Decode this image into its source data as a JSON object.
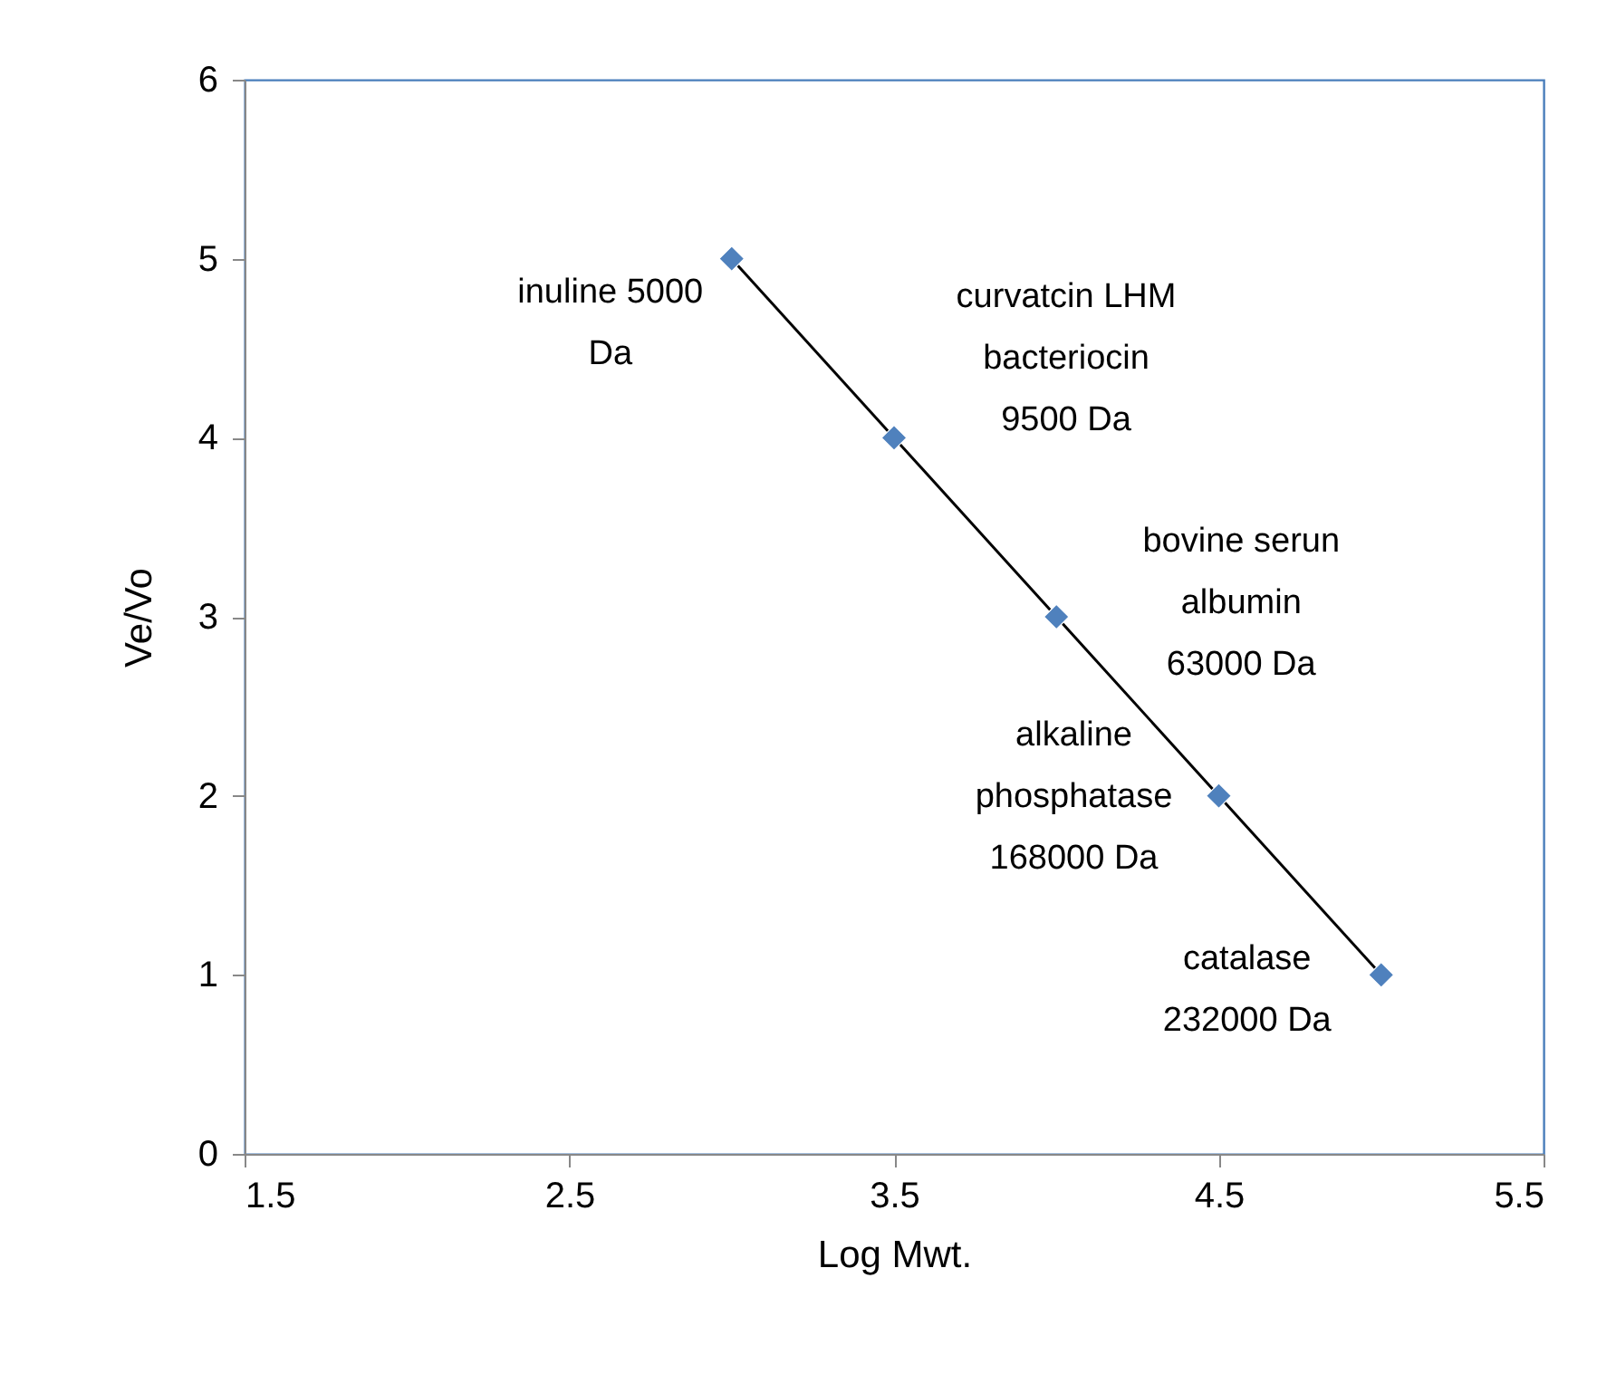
{
  "chart_data": {
    "type": "scatter",
    "xlabel": "Log Mwt.",
    "ylabel": "Ve/Vo",
    "xlim": [
      1.5,
      5.5
    ],
    "xticks": [
      1.5,
      2.5,
      3.5,
      4.5,
      5.5
    ],
    "ylim": [
      0,
      6
    ],
    "yticks": [
      0,
      1,
      2,
      3,
      4,
      5,
      6
    ],
    "grid": false,
    "series": [
      {
        "marker": "diamond",
        "color": "#4f81bd",
        "x": [
          3,
          3.5,
          4,
          4.5,
          5
        ],
        "values": [
          5,
          4,
          3,
          2,
          1
        ]
      },
      {
        "type": "line",
        "color": "#000000",
        "x": [
          3,
          5
        ],
        "values": [
          5,
          1
        ]
      }
    ],
    "annotations": [
      {
        "text": "inuline  5000\nDa",
        "x": 3,
        "y": 5
      },
      {
        "text": "curvatcin LHM\nbacteriocin\n9500 Da",
        "x": 3.5,
        "y": 4
      },
      {
        "text": "bovine serun\nalbumin\n63000 Da",
        "x": 4,
        "y": 3
      },
      {
        "text": "alkaline\nphosphatase\n168000 Da",
        "x": 4.5,
        "y": 2
      },
      {
        "text": "catalase\n232000 Da",
        "x": 5,
        "y": 1
      }
    ]
  }
}
